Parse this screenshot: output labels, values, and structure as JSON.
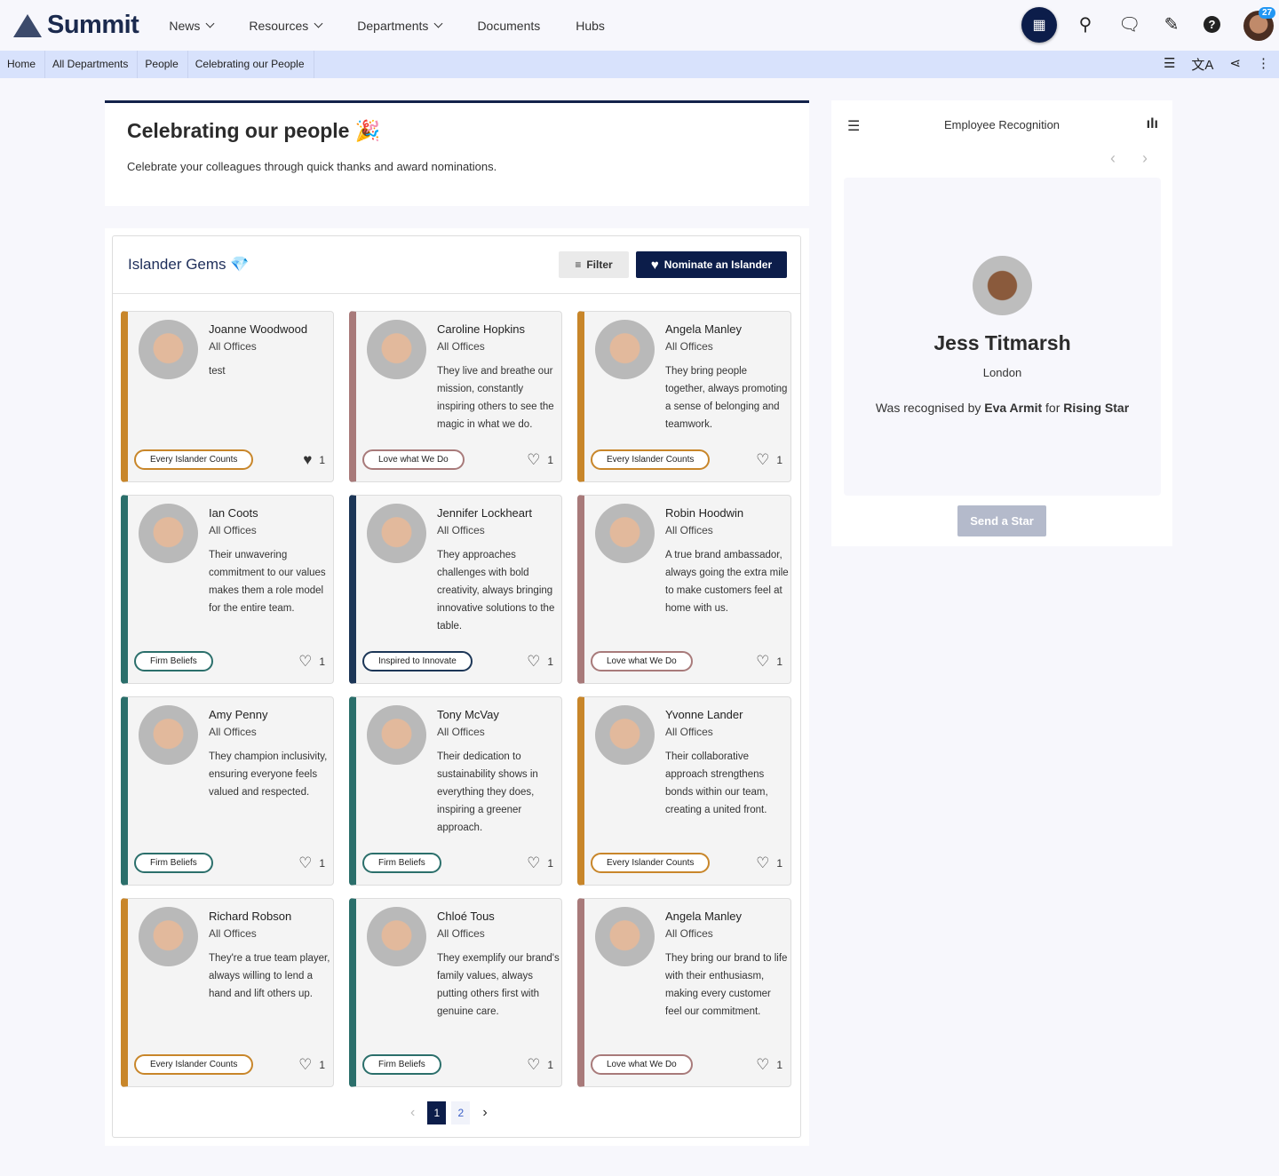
{
  "header": {
    "brand": "Summit",
    "nav": [
      {
        "label": "News",
        "dropdown": true
      },
      {
        "label": "Resources",
        "dropdown": true
      },
      {
        "label": "Departments",
        "dropdown": true
      },
      {
        "label": "Documents"
      },
      {
        "label": "Hubs"
      }
    ],
    "notification_count": "27",
    "icons": [
      "apps-grid-icon",
      "search-icon",
      "chat-icon",
      "magic-wand-icon",
      "help-icon",
      "avatar"
    ]
  },
  "breadcrumb": [
    "Home",
    "All Departments",
    "People",
    "Celebrating our People"
  ],
  "page": {
    "title": "Celebrating our people 🎉",
    "subtitle": "Celebrate your colleagues through quick thanks and award nominations."
  },
  "gems": {
    "title": "Islander Gems 💎",
    "filter_label": "Filter",
    "nominate_label": "Nominate an Islander",
    "colors": {
      "Every Islander Counts": "#c8862a",
      "Love what We Do": "#a87a7a",
      "Firm Beliefs": "#2b6f6b",
      "Inspired to Innovate": "#1c3657"
    },
    "cards": [
      {
        "name": "Joanne Woodwood",
        "office": "All Offices",
        "message": "test",
        "tag": "Every Islander Counts",
        "likes": "1",
        "liked": true
      },
      {
        "name": "Caroline Hopkins",
        "office": "All Offices",
        "message": "They live and breathe our mission, constantly inspiring others to see the magic in what we do.",
        "tag": "Love what We Do",
        "likes": "1",
        "liked": false
      },
      {
        "name": "Angela Manley",
        "office": "All Offices",
        "message": "They bring people together, always promoting a sense of belonging and teamwork.",
        "tag": "Every Islander Counts",
        "likes": "1",
        "liked": false
      },
      {
        "name": "Ian Coots",
        "office": "All Offices",
        "message": "Their unwavering commitment to our values makes them a role model for the entire team.",
        "tag": "Firm Beliefs",
        "likes": "1",
        "liked": false
      },
      {
        "name": "Jennifer Lockheart",
        "office": "All Offices",
        "message": "They approaches challenges with bold creativity, always bringing innovative solutions to the table.",
        "tag": "Inspired to Innovate",
        "likes": "1",
        "liked": false
      },
      {
        "name": "Robin Hoodwin",
        "office": "All Offices",
        "message": "A true brand ambassador, always going the extra mile to make customers feel at home with us.",
        "tag": "Love what We Do",
        "likes": "1",
        "liked": false
      },
      {
        "name": "Amy Penny",
        "office": "All Offices",
        "message": "They champion inclusivity, ensuring everyone feels valued and respected.",
        "tag": "Firm Beliefs",
        "likes": "1",
        "liked": false
      },
      {
        "name": "Tony McVay",
        "office": "All Offices",
        "message": "Their dedication to sustainability shows in everything they does, inspiring a greener approach.",
        "tag": "Firm Beliefs",
        "likes": "1",
        "liked": false
      },
      {
        "name": "Yvonne Lander",
        "office": "All Offices",
        "message": "Their collaborative approach strengthens bonds within our team, creating a united front.",
        "tag": "Every Islander Counts",
        "likes": "1",
        "liked": false
      },
      {
        "name": "Richard Robson",
        "office": "All Offices",
        "message": "They're a true team player, always willing to lend a hand and lift others up.",
        "tag": "Every Islander Counts",
        "likes": "1",
        "liked": false
      },
      {
        "name": "Chloé Tous",
        "office": "All Offices",
        "message": "They exemplify our brand's family values, always putting others first with genuine care.",
        "tag": "Firm Beliefs",
        "likes": "1",
        "liked": false
      },
      {
        "name": "Angela Manley",
        "office": "All Offices",
        "message": "They bring our brand to life with their enthusiasm, making every customer feel our commitment.",
        "tag": "Love what We Do",
        "likes": "1",
        "liked": false
      }
    ],
    "pagination": {
      "pages": [
        "1",
        "2"
      ],
      "current": "1"
    }
  },
  "recognition": {
    "title": "Employee Recognition",
    "name": "Jess Titmarsh",
    "location": "London",
    "text_prefix": "Was recognised by ",
    "by": "Eva Armit",
    "text_mid": " for ",
    "award": "Rising Star",
    "send_label": "Send a Star"
  }
}
